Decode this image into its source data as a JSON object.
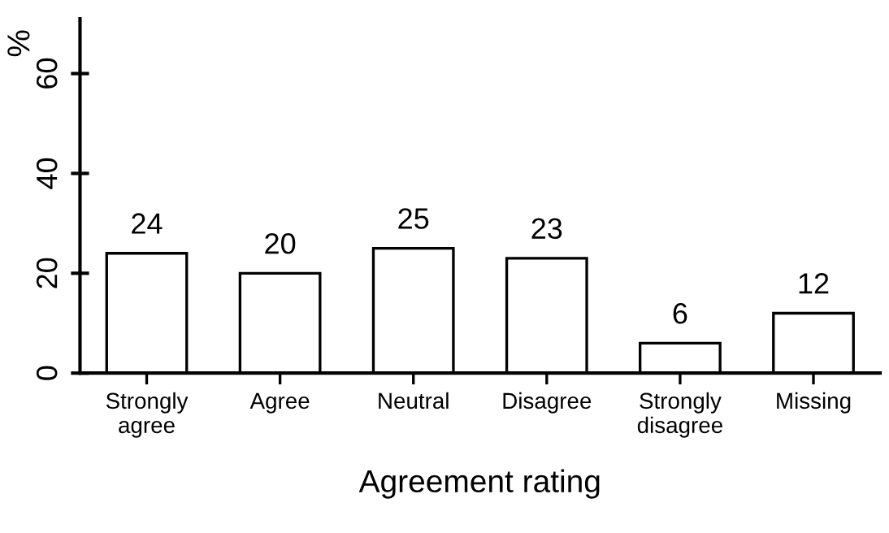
{
  "chart_data": {
    "type": "bar",
    "xlabel": "Agreement rating",
    "ylabel": "%",
    "categories": [
      "Strongly\nagree",
      "Agree",
      "Neutral",
      "Disagree",
      "Strongly\ndisagree",
      "Missing"
    ],
    "values": [
      24,
      20,
      25,
      23,
      6,
      12
    ],
    "color": "#ffffff",
    "ylim": [
      0,
      71
    ],
    "yticks": [
      0,
      20,
      40,
      60
    ],
    "data_labels": true
  }
}
